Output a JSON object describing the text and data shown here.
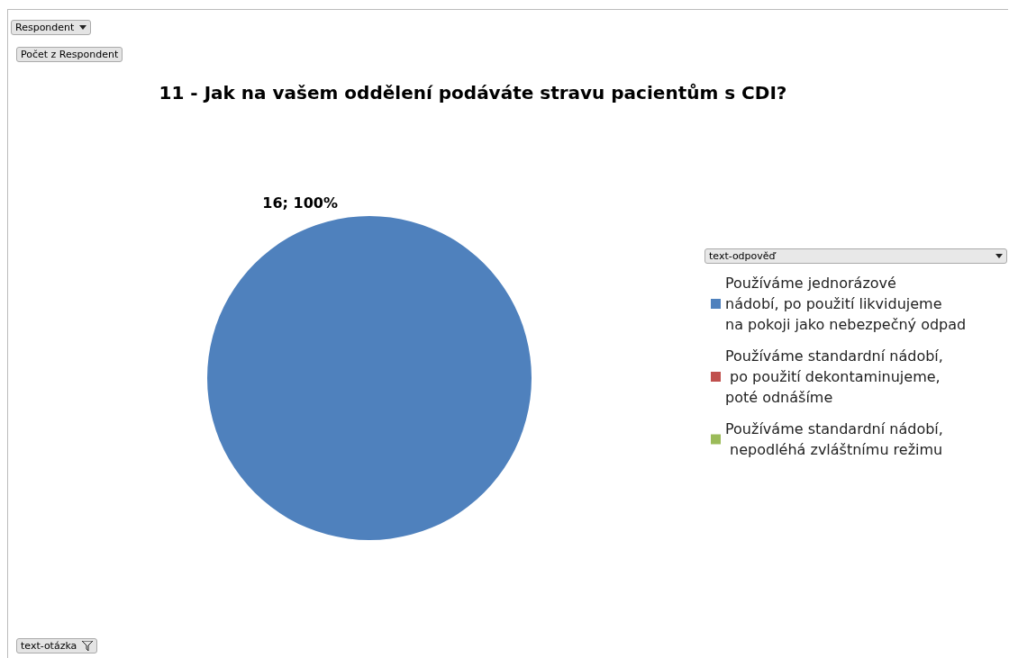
{
  "chart_data": {
    "type": "pie",
    "title": "11 - Jak na vašem oddělení podáváte stravu pacientům s CDI?",
    "categories": [
      "Používáme jednorázové nádobí, po použití likvidujeme na pokoji jako nebezpečný odpad",
      "Používáme standardní nádobí, po použití dekontaminujeme, poté odnášíme",
      "Používáme standardní nádobí, nepodléhá zvláštnímu režimu"
    ],
    "values": [
      16,
      0,
      0
    ],
    "colors": [
      "#4f81bd",
      "#c0504d",
      "#9bbb59"
    ],
    "value_labels": [
      "16; 100%",
      null,
      null
    ],
    "legend": "right",
    "legend_title": "text-odpověď",
    "annotations": [
      "Respondent",
      "Počet z Respondent",
      "text-otázka"
    ]
  }
}
